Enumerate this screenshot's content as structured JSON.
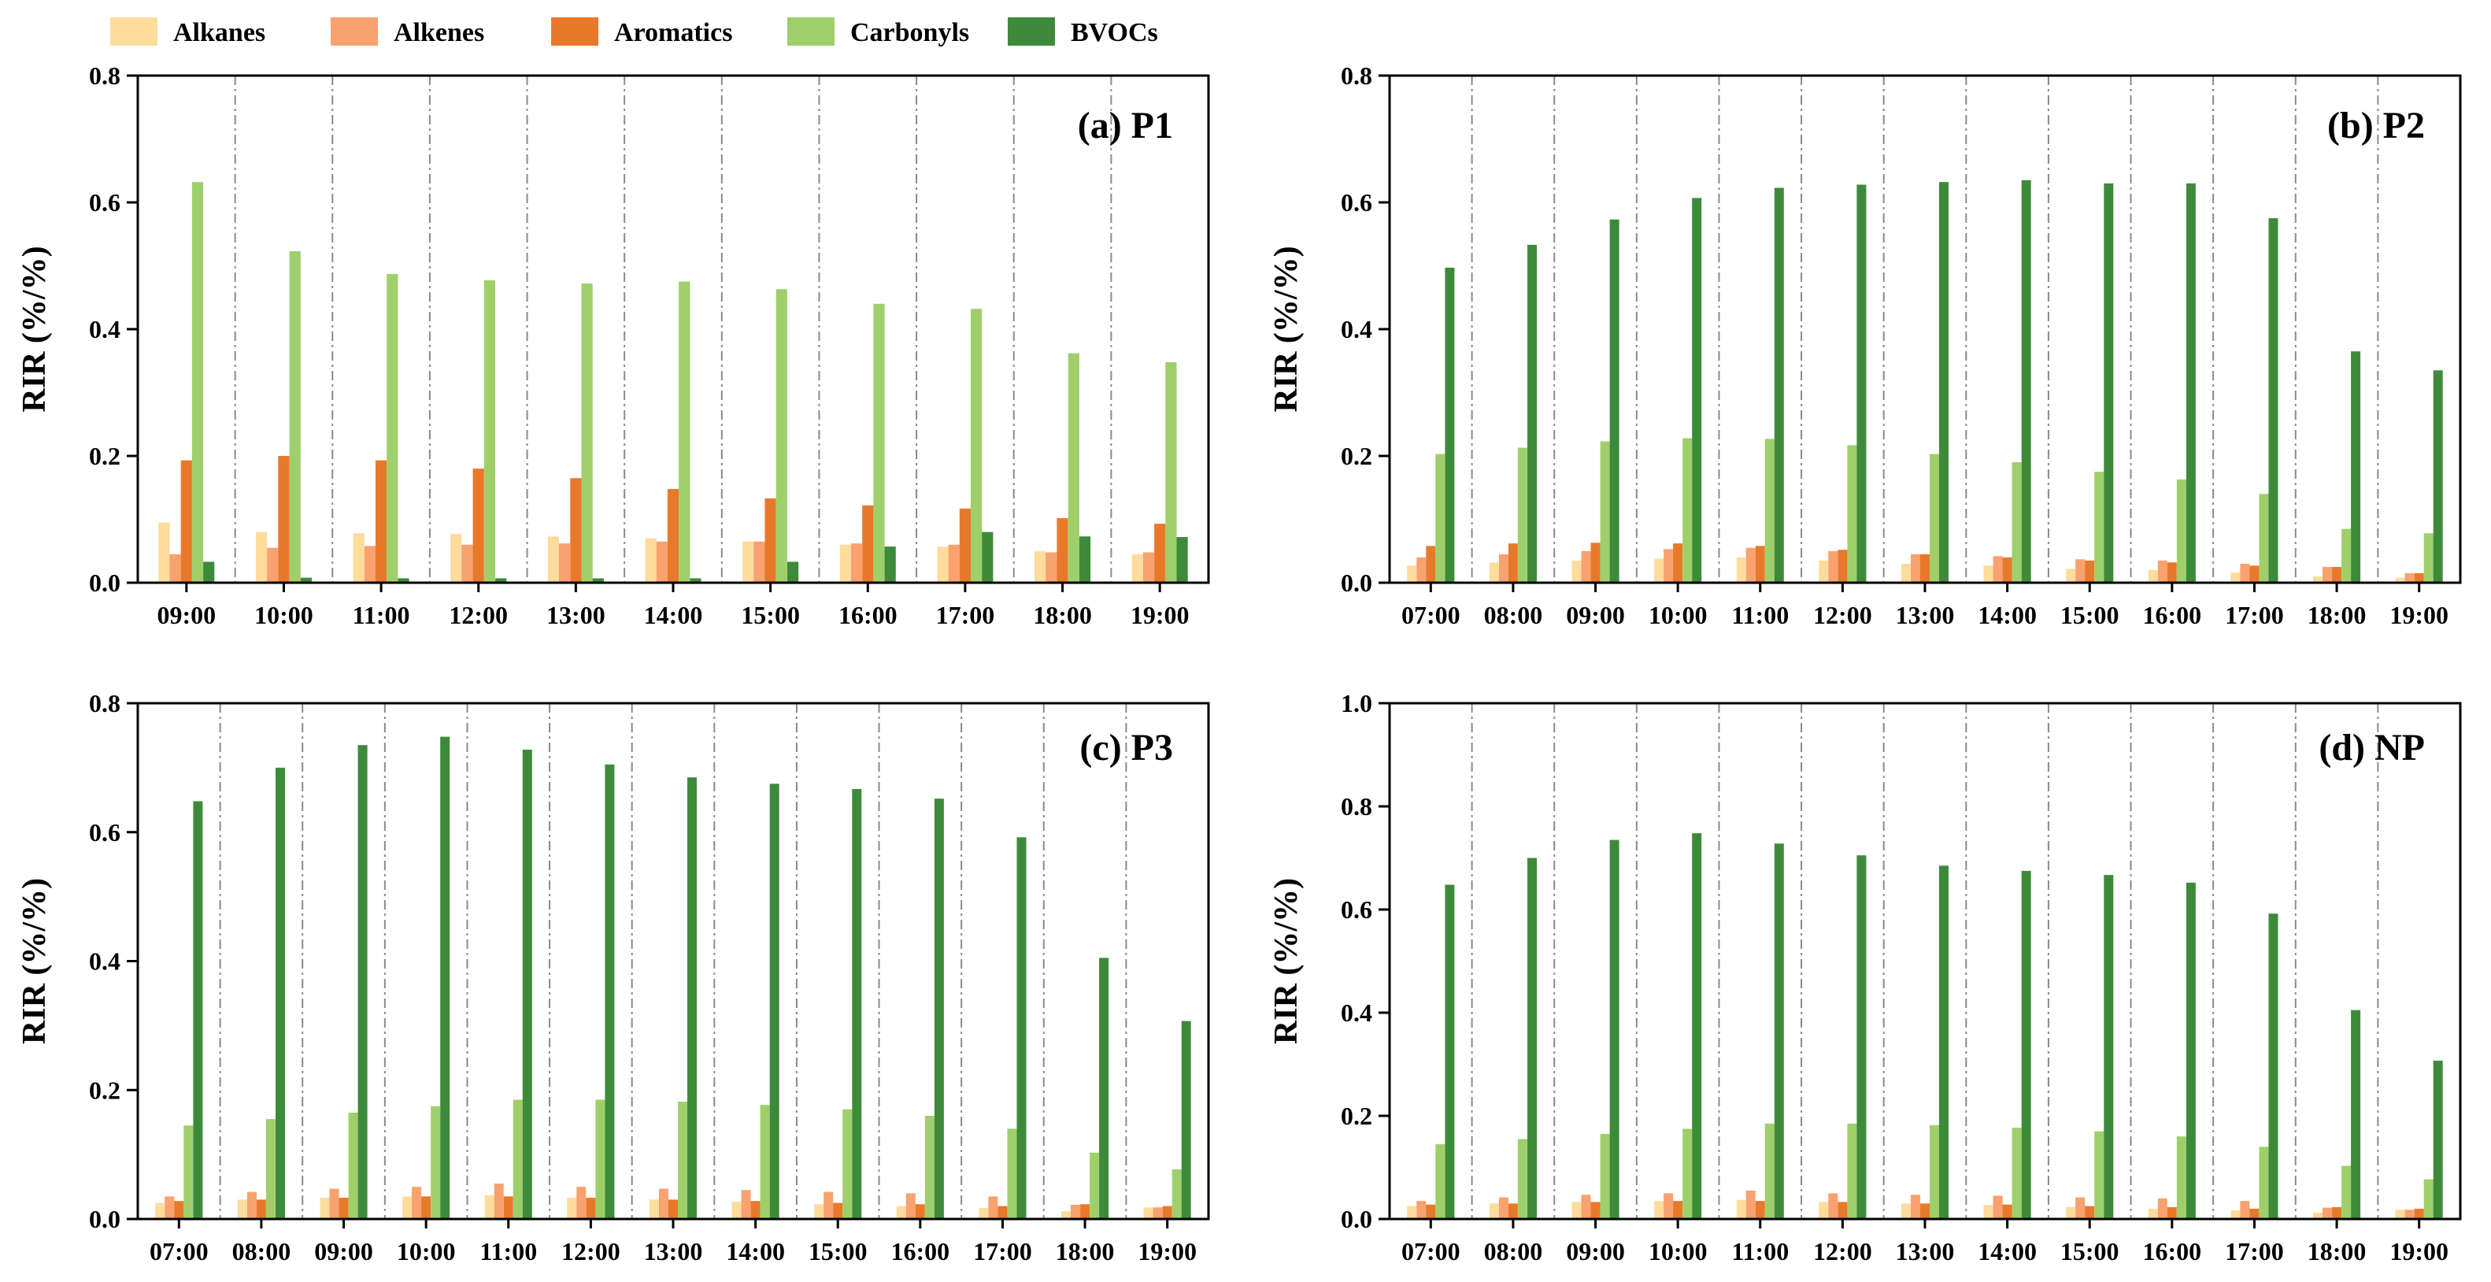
{
  "colors": {
    "Alkanes": "#fddc9c",
    "Alkenes": "#f9a16f",
    "Aromatics": "#e8792a",
    "Carbonyls": "#9fcf6b",
    "BVOCs": "#3d8b3a"
  },
  "chart_data": [
    {
      "type": "bar",
      "title": "(a) P1",
      "ylabel": "RIR (%/%)",
      "ylim": [
        0,
        0.8
      ],
      "yticks": [
        0,
        0.2,
        0.4,
        0.6,
        0.8
      ],
      "ytick_labels": [
        "0.0",
        "0.2",
        "0.4",
        "0.6",
        "0.8"
      ],
      "legend": [
        "Alkanes",
        "Alkenes",
        "Aromatics",
        "Carbonyls",
        "BVOCs"
      ],
      "categories": [
        "09:00",
        "10:00",
        "11:00",
        "12:00",
        "13:00",
        "14:00",
        "15:00",
        "16:00",
        "17:00",
        "18:00",
        "19:00"
      ],
      "series": [
        {
          "name": "Alkanes",
          "values": [
            0.095,
            0.08,
            0.078,
            0.077,
            0.073,
            0.07,
            0.065,
            0.06,
            0.057,
            0.05,
            0.045
          ]
        },
        {
          "name": "Alkenes",
          "values": [
            0.045,
            0.055,
            0.058,
            0.06,
            0.062,
            0.065,
            0.065,
            0.062,
            0.06,
            0.048,
            0.048
          ]
        },
        {
          "name": "Aromatics",
          "values": [
            0.193,
            0.2,
            0.193,
            0.18,
            0.165,
            0.148,
            0.133,
            0.122,
            0.117,
            0.102,
            0.093
          ]
        },
        {
          "name": "Carbonyls",
          "values": [
            0.632,
            0.523,
            0.487,
            0.477,
            0.472,
            0.475,
            0.463,
            0.44,
            0.432,
            0.362,
            0.348
          ]
        },
        {
          "name": "BVOCs",
          "values": [
            0.033,
            0.008,
            0.007,
            0.007,
            0.007,
            0.007,
            0.033,
            0.057,
            0.08,
            0.073,
            0.072
          ]
        }
      ]
    },
    {
      "type": "bar",
      "title": "(b) P2",
      "ylabel": "RIR (%/%)",
      "ylim": [
        0,
        0.8
      ],
      "yticks": [
        0,
        0.2,
        0.4,
        0.6,
        0.8
      ],
      "ytick_labels": [
        "0.0",
        "0.2",
        "0.4",
        "0.6",
        "0.8"
      ],
      "legend": [
        "Alkanes",
        "Alkenes",
        "Aromatics",
        "Carbonyls",
        "BVOCs"
      ],
      "categories": [
        "07:00",
        "08:00",
        "09:00",
        "10:00",
        "11:00",
        "12:00",
        "13:00",
        "14:00",
        "15:00",
        "16:00",
        "17:00",
        "18:00",
        "19:00"
      ],
      "series": [
        {
          "name": "Alkanes",
          "values": [
            0.027,
            0.032,
            0.035,
            0.038,
            0.04,
            0.035,
            0.03,
            0.027,
            0.022,
            0.02,
            0.016,
            0.01,
            0.008
          ]
        },
        {
          "name": "Alkenes",
          "values": [
            0.04,
            0.045,
            0.05,
            0.053,
            0.055,
            0.05,
            0.045,
            0.042,
            0.037,
            0.035,
            0.03,
            0.025,
            0.015
          ]
        },
        {
          "name": "Aromatics",
          "values": [
            0.058,
            0.062,
            0.063,
            0.062,
            0.058,
            0.052,
            0.045,
            0.04,
            0.035,
            0.032,
            0.027,
            0.025,
            0.015
          ]
        },
        {
          "name": "Carbonyls",
          "values": [
            0.203,
            0.213,
            0.223,
            0.228,
            0.227,
            0.217,
            0.203,
            0.19,
            0.175,
            0.163,
            0.14,
            0.085,
            0.078
          ]
        },
        {
          "name": "BVOCs",
          "values": [
            0.497,
            0.533,
            0.573,
            0.607,
            0.623,
            0.628,
            0.632,
            0.635,
            0.63,
            0.63,
            0.575,
            0.365,
            0.335
          ]
        }
      ]
    },
    {
      "type": "bar",
      "title": "(c) P3",
      "ylabel": "RIR (%/%)",
      "ylim": [
        0,
        0.8
      ],
      "yticks": [
        0,
        0.2,
        0.4,
        0.6,
        0.8
      ],
      "ytick_labels": [
        "0.0",
        "0.2",
        "0.4",
        "0.6",
        "0.8"
      ],
      "legend": [
        "Alkanes",
        "Alkenes",
        "Aromatics",
        "Carbonyls",
        "BVOCs"
      ],
      "categories": [
        "07:00",
        "08:00",
        "09:00",
        "10:00",
        "11:00",
        "12:00",
        "13:00",
        "14:00",
        "15:00",
        "16:00",
        "17:00",
        "18:00",
        "19:00"
      ],
      "series": [
        {
          "name": "Alkanes",
          "values": [
            0.025,
            0.03,
            0.033,
            0.035,
            0.037,
            0.033,
            0.03,
            0.027,
            0.023,
            0.02,
            0.017,
            0.012,
            0.018
          ]
        },
        {
          "name": "Alkenes",
          "values": [
            0.035,
            0.042,
            0.047,
            0.05,
            0.055,
            0.05,
            0.047,
            0.045,
            0.042,
            0.04,
            0.035,
            0.022,
            0.018
          ]
        },
        {
          "name": "Aromatics",
          "values": [
            0.028,
            0.03,
            0.033,
            0.035,
            0.035,
            0.033,
            0.03,
            0.028,
            0.025,
            0.023,
            0.02,
            0.023,
            0.02
          ]
        },
        {
          "name": "Carbonyls",
          "values": [
            0.145,
            0.155,
            0.165,
            0.175,
            0.185,
            0.185,
            0.182,
            0.177,
            0.17,
            0.16,
            0.14,
            0.103,
            0.077
          ]
        },
        {
          "name": "BVOCs",
          "values": [
            0.648,
            0.7,
            0.735,
            0.748,
            0.728,
            0.705,
            0.685,
            0.675,
            0.667,
            0.652,
            0.592,
            0.405,
            0.307
          ]
        }
      ]
    },
    {
      "type": "bar",
      "title": "(d) NP",
      "ylabel": "RIR (%/%)",
      "ylim": [
        0,
        1.0
      ],
      "yticks": [
        0,
        0.2,
        0.4,
        0.6,
        0.8,
        1.0
      ],
      "ytick_labels": [
        "0.0",
        "0.2",
        "0.4",
        "0.6",
        "0.8",
        "1.0"
      ],
      "legend": [
        "Alkanes",
        "Alkenes",
        "Aromatics",
        "Carbonyls",
        "BVOCs"
      ],
      "categories": [
        "07:00",
        "08:00",
        "09:00",
        "10:00",
        "11:00",
        "12:00",
        "13:00",
        "14:00",
        "15:00",
        "16:00",
        "17:00",
        "18:00",
        "19:00"
      ],
      "series": [
        {
          "name": "Alkanes",
          "values": [
            0.025,
            0.03,
            0.033,
            0.035,
            0.037,
            0.033,
            0.03,
            0.027,
            0.023,
            0.02,
            0.017,
            0.012,
            0.018
          ]
        },
        {
          "name": "Alkenes",
          "values": [
            0.035,
            0.042,
            0.047,
            0.05,
            0.055,
            0.05,
            0.047,
            0.045,
            0.042,
            0.04,
            0.035,
            0.022,
            0.018
          ]
        },
        {
          "name": "Aromatics",
          "values": [
            0.028,
            0.03,
            0.033,
            0.035,
            0.035,
            0.033,
            0.03,
            0.028,
            0.025,
            0.023,
            0.02,
            0.023,
            0.02
          ]
        },
        {
          "name": "Carbonyls",
          "values": [
            0.145,
            0.155,
            0.165,
            0.175,
            0.185,
            0.185,
            0.182,
            0.177,
            0.17,
            0.16,
            0.14,
            0.103,
            0.077
          ]
        },
        {
          "name": "BVOCs",
          "values": [
            0.648,
            0.7,
            0.735,
            0.748,
            0.728,
            0.705,
            0.685,
            0.675,
            0.667,
            0.652,
            0.592,
            0.405,
            0.307
          ]
        }
      ]
    }
  ]
}
